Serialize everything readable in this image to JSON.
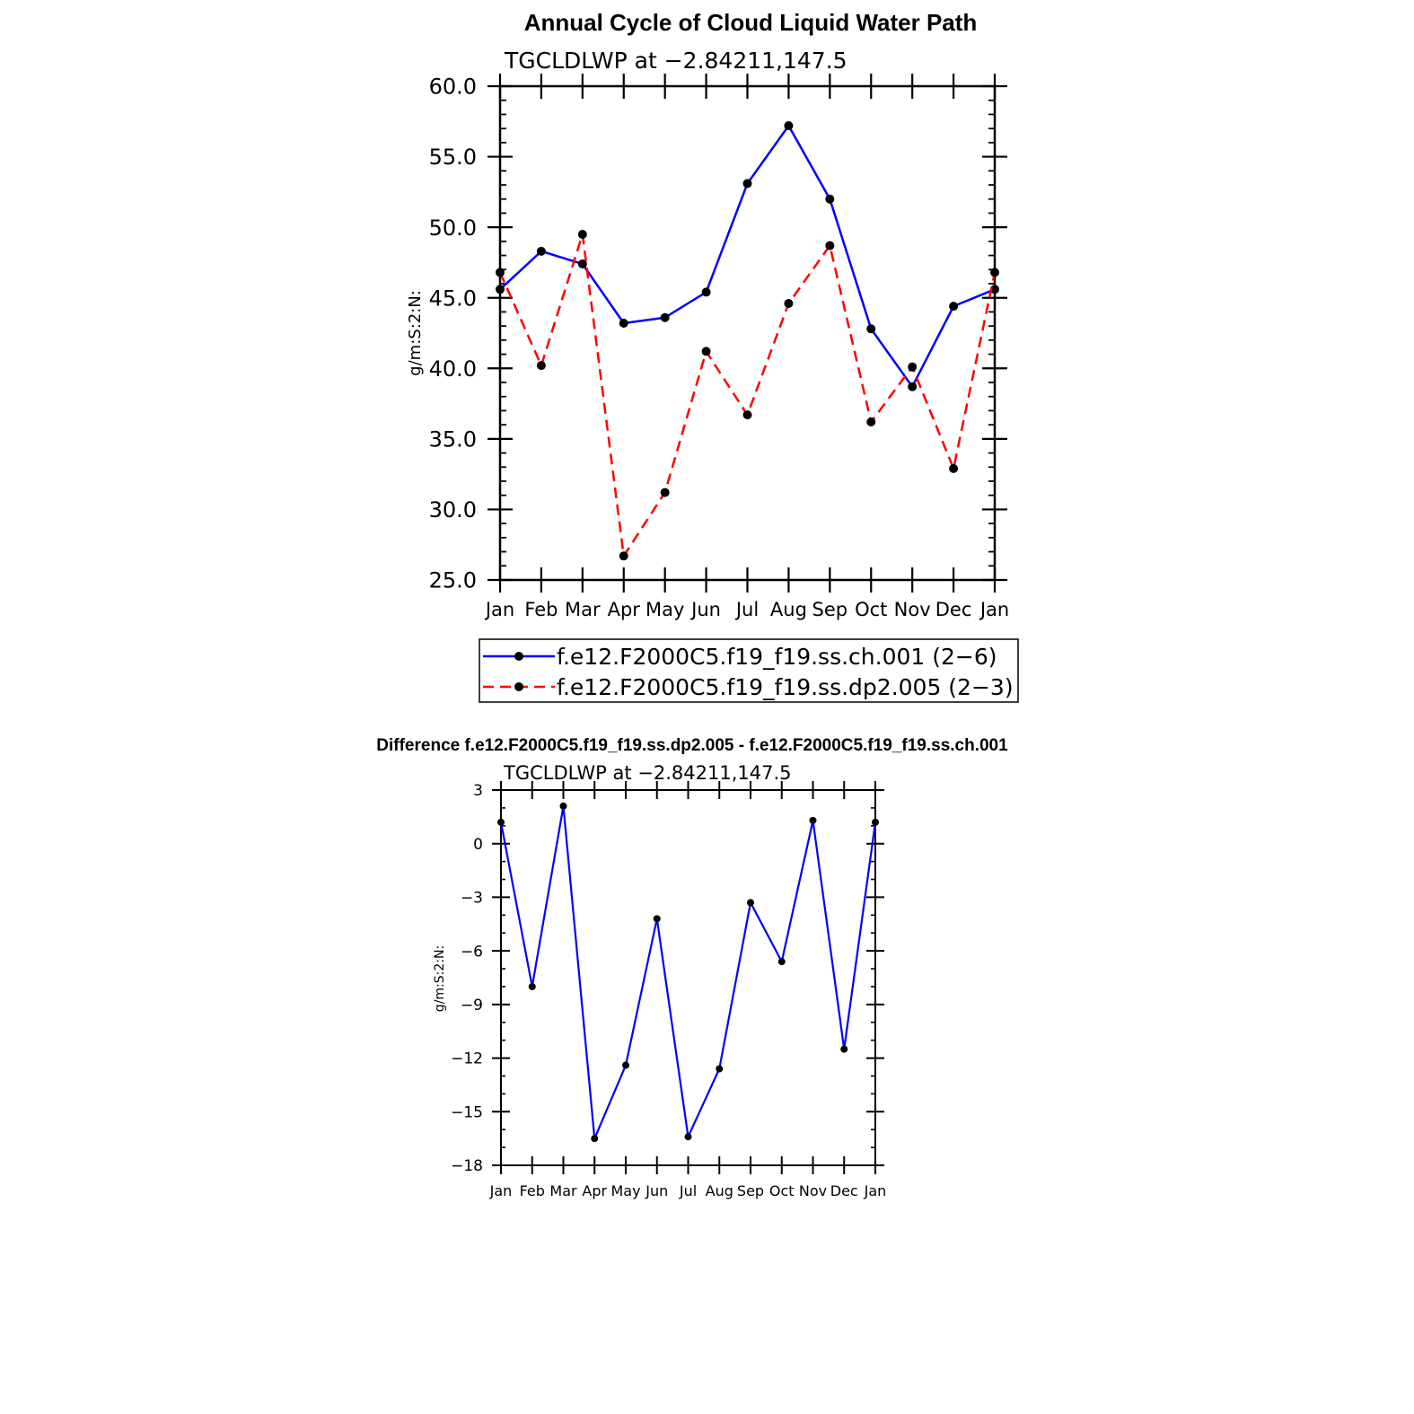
{
  "chart_data": [
    {
      "type": "line",
      "title": "Annual Cycle of Cloud Liquid Water Path",
      "subtitle": "TGCLDLWP at −2.84211,147.5",
      "xlabel": "",
      "ylabel": "g/m:S:2:N:",
      "categories": [
        "Jan",
        "Feb",
        "Mar",
        "Apr",
        "May",
        "Jun",
        "Jul",
        "Aug",
        "Sep",
        "Oct",
        "Nov",
        "Dec",
        "Jan"
      ],
      "ylim": [
        25,
        60
      ],
      "yticks": [
        "25.0",
        "30.0",
        "35.0",
        "40.0",
        "45.0",
        "50.0",
        "55.0",
        "60.0"
      ],
      "grid": false,
      "legend": "bottom",
      "series": [
        {
          "name": "f.e12.F2000C5.f19_f19.ss.ch.001 (2−6)",
          "color": "#0000ff",
          "dash": false,
          "values": [
            45.6,
            48.3,
            47.4,
            43.2,
            43.6,
            45.4,
            53.1,
            57.2,
            52.0,
            42.8,
            38.7,
            44.4,
            45.6
          ]
        },
        {
          "name": "f.e12.F2000C5.f19_f19.ss.dp2.005 (2−3)",
          "color": "#ff0000",
          "dash": true,
          "values": [
            46.8,
            40.2,
            49.5,
            26.7,
            31.2,
            41.2,
            36.7,
            44.6,
            48.7,
            36.2,
            40.1,
            32.9,
            46.8
          ]
        }
      ]
    },
    {
      "type": "line",
      "title": "Difference f.e12.F2000C5.f19_f19.ss.dp2.005 - f.e12.F2000C5.f19_f19.ss.ch.001",
      "subtitle": "TGCLDLWP at −2.84211,147.5",
      "xlabel": "",
      "ylabel": "g/m:S:2:N:",
      "categories": [
        "Jan",
        "Feb",
        "Mar",
        "Apr",
        "May",
        "Jun",
        "Jul",
        "Aug",
        "Sep",
        "Oct",
        "Nov",
        "Dec",
        "Jan"
      ],
      "ylim": [
        -18,
        3
      ],
      "yticks": [
        "−18",
        "−15",
        "−12",
        "−9",
        "−6",
        "−3",
        "0",
        "3"
      ],
      "grid": false,
      "series": [
        {
          "color": "#0000ff",
          "dash": false,
          "values": [
            1.2,
            -8.0,
            2.1,
            -16.5,
            -12.4,
            -4.2,
            -16.4,
            -12.6,
            -3.3,
            -6.6,
            1.3,
            -11.5,
            1.2
          ]
        }
      ]
    }
  ]
}
